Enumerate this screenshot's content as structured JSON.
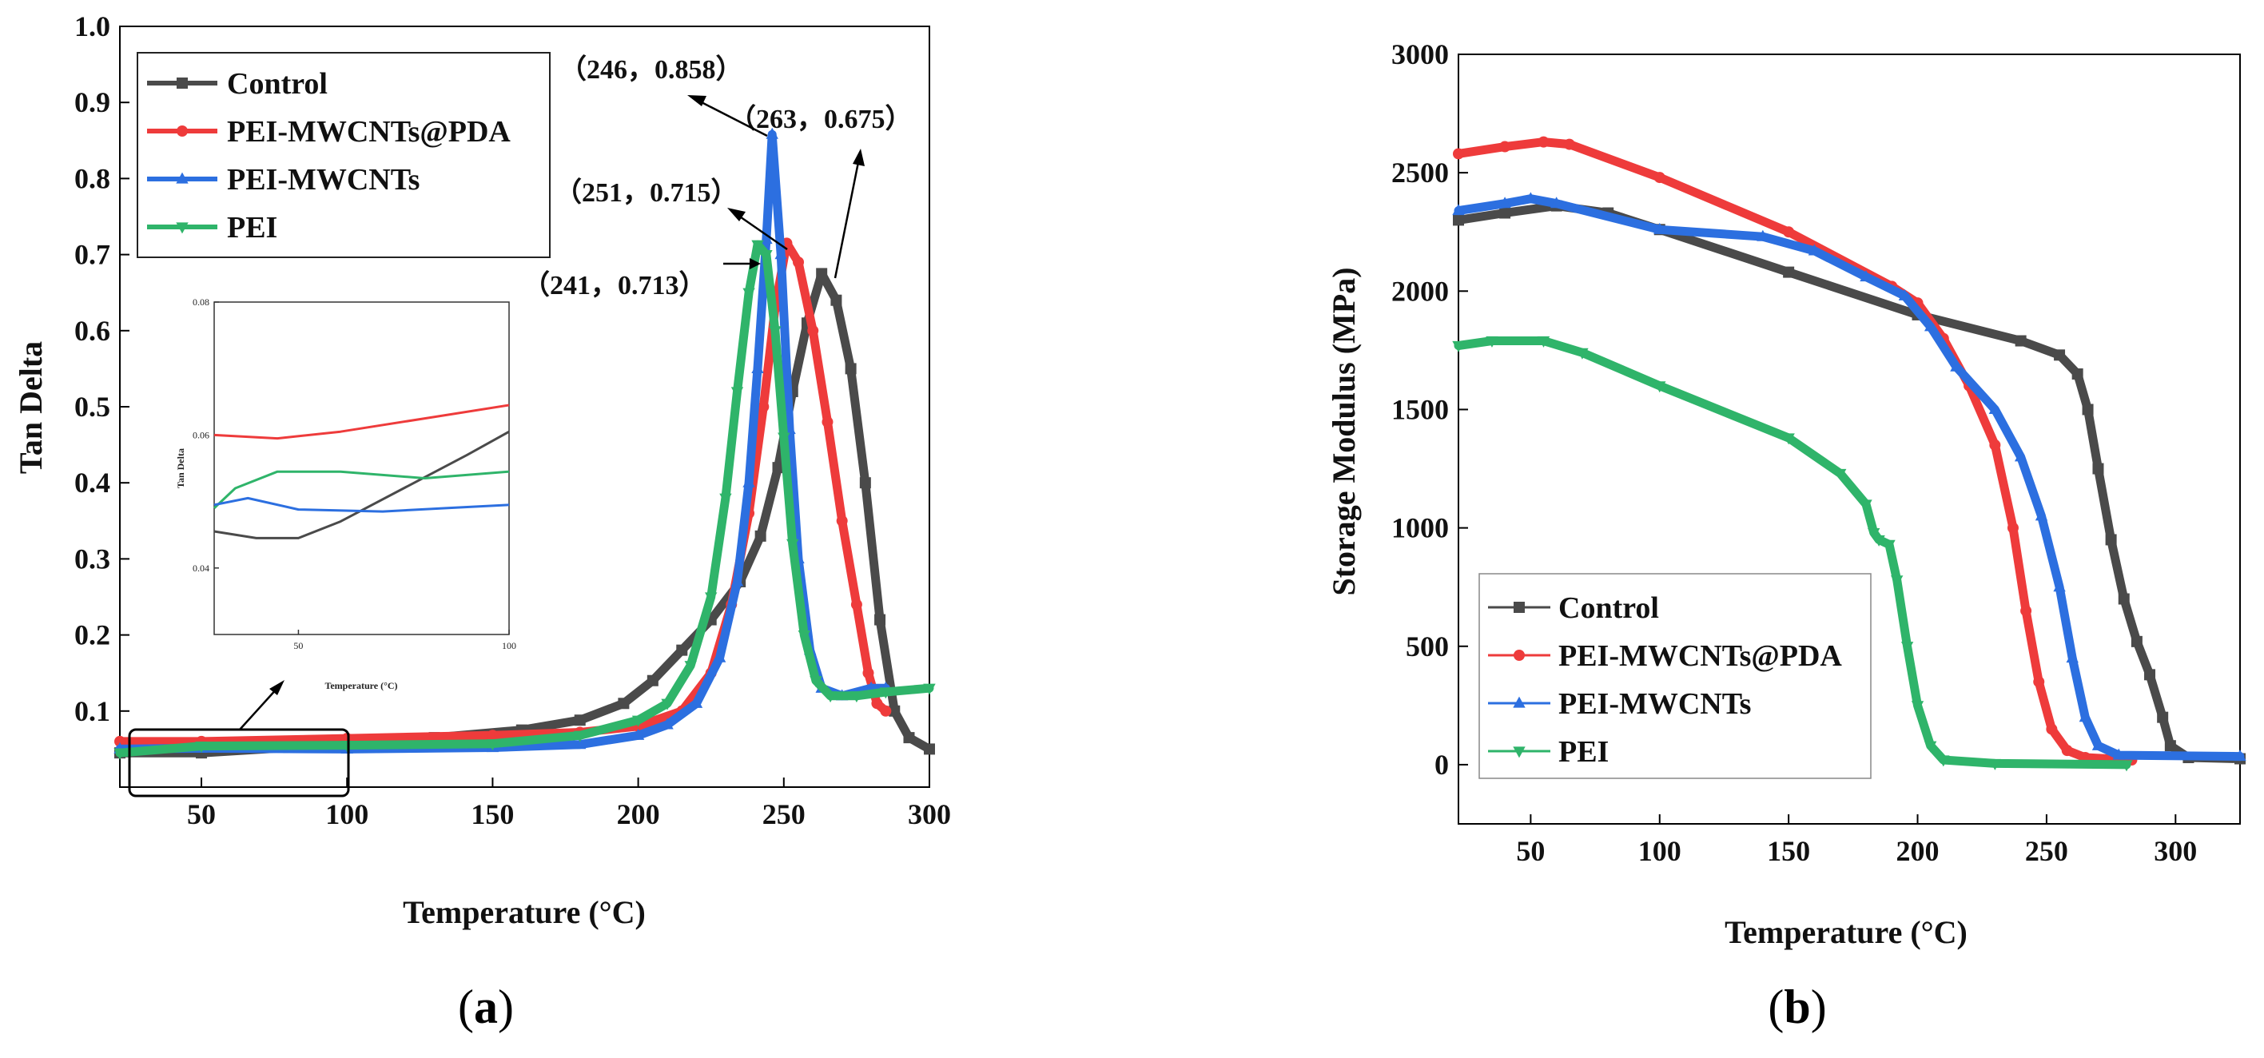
{
  "chart_data": [
    {
      "id": "a",
      "type": "line",
      "caption_letter": "a",
      "xlabel": "Temperature (°C)",
      "ylabel": "Tan Delta",
      "xlim": [
        22,
        300
      ],
      "ylim": [
        0.0,
        1.0
      ],
      "xticks": [
        50,
        100,
        150,
        200,
        250,
        300
      ],
      "yticks": [
        0.1,
        0.2,
        0.3,
        0.4,
        0.5,
        0.6,
        0.7,
        0.8,
        0.9,
        1.0
      ],
      "legend": {
        "position": "top-left"
      },
      "series": [
        {
          "name": "Control",
          "color": "#4a4a4a",
          "marker": "square",
          "points": [
            [
              22,
              0.045
            ],
            [
              50,
              0.045
            ],
            [
              80,
              0.052
            ],
            [
              100,
              0.058
            ],
            [
              130,
              0.065
            ],
            [
              160,
              0.075
            ],
            [
              180,
              0.088
            ],
            [
              195,
              0.11
            ],
            [
              205,
              0.14
            ],
            [
              215,
              0.18
            ],
            [
              225,
              0.22
            ],
            [
              235,
              0.27
            ],
            [
              242,
              0.33
            ],
            [
              248,
              0.42
            ],
            [
              253,
              0.52
            ],
            [
              258,
              0.61
            ],
            [
              263,
              0.675
            ],
            [
              268,
              0.64
            ],
            [
              273,
              0.55
            ],
            [
              278,
              0.4
            ],
            [
              283,
              0.22
            ],
            [
              288,
              0.1
            ],
            [
              293,
              0.065
            ],
            [
              300,
              0.05
            ]
          ]
        },
        {
          "name": "PEI-MWCNTs@PDA",
          "color": "#ee3b3b",
          "marker": "circle",
          "points": [
            [
              22,
              0.06
            ],
            [
              50,
              0.06
            ],
            [
              100,
              0.064
            ],
            [
              150,
              0.068
            ],
            [
              180,
              0.072
            ],
            [
              200,
              0.08
            ],
            [
              215,
              0.1
            ],
            [
              225,
              0.15
            ],
            [
              232,
              0.24
            ],
            [
              238,
              0.36
            ],
            [
              243,
              0.5
            ],
            [
              247,
              0.63
            ],
            [
              251,
              0.715
            ],
            [
              255,
              0.69
            ],
            [
              260,
              0.6
            ],
            [
              265,
              0.48
            ],
            [
              270,
              0.35
            ],
            [
              275,
              0.24
            ],
            [
              279,
              0.15
            ],
            [
              282,
              0.11
            ],
            [
              285,
              0.1
            ]
          ]
        },
        {
          "name": "PEI-MWCNTs",
          "color": "#2c6fe0",
          "marker": "triangle-up",
          "points": [
            [
              22,
              0.05
            ],
            [
              50,
              0.051
            ],
            [
              100,
              0.05
            ],
            [
              150,
              0.052
            ],
            [
              180,
              0.056
            ],
            [
              200,
              0.068
            ],
            [
              210,
              0.082
            ],
            [
              220,
              0.11
            ],
            [
              228,
              0.17
            ],
            [
              234,
              0.27
            ],
            [
              238,
              0.4
            ],
            [
              241,
              0.55
            ],
            [
              244,
              0.72
            ],
            [
              246,
              0.858
            ],
            [
              249,
              0.7
            ],
            [
              252,
              0.47
            ],
            [
              255,
              0.3
            ],
            [
              259,
              0.18
            ],
            [
              263,
              0.13
            ],
            [
              270,
              0.12
            ],
            [
              280,
              0.13
            ],
            [
              285,
              0.13
            ]
          ]
        },
        {
          "name": "PEI",
          "color": "#2fb46a",
          "marker": "triangle-down",
          "points": [
            [
              22,
              0.045
            ],
            [
              50,
              0.054
            ],
            [
              100,
              0.055
            ],
            [
              150,
              0.057
            ],
            [
              180,
              0.068
            ],
            [
              200,
              0.088
            ],
            [
              210,
              0.11
            ],
            [
              218,
              0.16
            ],
            [
              225,
              0.25
            ],
            [
              230,
              0.38
            ],
            [
              234,
              0.52
            ],
            [
              238,
              0.65
            ],
            [
              241,
              0.713
            ],
            [
              244,
              0.7
            ],
            [
              247,
              0.6
            ],
            [
              250,
              0.46
            ],
            [
              253,
              0.32
            ],
            [
              257,
              0.2
            ],
            [
              261,
              0.14
            ],
            [
              266,
              0.12
            ],
            [
              275,
              0.12
            ],
            [
              285,
              0.125
            ],
            [
              300,
              0.13
            ]
          ]
        }
      ],
      "annotations": [
        {
          "text": "（246，0.858）"
        },
        {
          "text": "（263，0.675）"
        },
        {
          "text": "（251，0.715）"
        },
        {
          "text": "（241，0.713）"
        }
      ],
      "inset": {
        "xlabel": "Temperature (°C)",
        "ylabel": "Tan Delta",
        "xlim": [
          30,
          100
        ],
        "ylim": [
          0.03,
          0.08
        ],
        "xticks": [
          50,
          100
        ],
        "yticks": [
          0.04,
          0.06,
          0.08
        ],
        "series": [
          {
            "name": "PEI-MWCNTs@PDA",
            "color": "#ee3b3b",
            "points": [
              [
                30,
                0.06
              ],
              [
                45,
                0.0595
              ],
              [
                60,
                0.0605
              ],
              [
                80,
                0.0625
              ],
              [
                100,
                0.0645
              ]
            ]
          },
          {
            "name": "Control",
            "color": "#4a4a4a",
            "points": [
              [
                30,
                0.0455
              ],
              [
                40,
                0.0445
              ],
              [
                50,
                0.0445
              ],
              [
                60,
                0.047
              ],
              [
                75,
                0.052
              ],
              [
                90,
                0.057
              ],
              [
                100,
                0.0605
              ]
            ]
          },
          {
            "name": "PEI",
            "color": "#2fb46a",
            "points": [
              [
                30,
                0.049
              ],
              [
                35,
                0.052
              ],
              [
                45,
                0.0545
              ],
              [
                60,
                0.0545
              ],
              [
                80,
                0.0535
              ],
              [
                100,
                0.0545
              ]
            ]
          },
          {
            "name": "PEI-MWCNTs",
            "color": "#2c6fe0",
            "points": [
              [
                30,
                0.0495
              ],
              [
                38,
                0.0505
              ],
              [
                50,
                0.0488
              ],
              [
                70,
                0.0485
              ],
              [
                85,
                0.049
              ],
              [
                100,
                0.0495
              ]
            ]
          }
        ]
      }
    },
    {
      "id": "b",
      "type": "line",
      "caption_letter": "b",
      "xlabel": "Temperature (°C)",
      "ylabel": "Storage Modulus (MPa)",
      "xlim": [
        22,
        325
      ],
      "ylim": [
        -250,
        3000
      ],
      "xticks": [
        50,
        100,
        150,
        200,
        250,
        300
      ],
      "yticks": [
        0,
        500,
        1000,
        1500,
        2000,
        2500,
        3000
      ],
      "legend": {
        "position": "bottom-left"
      },
      "series": [
        {
          "name": "Control",
          "color": "#4a4a4a",
          "marker": "square",
          "points": [
            [
              22,
              2300
            ],
            [
              40,
              2330
            ],
            [
              60,
              2360
            ],
            [
              80,
              2330
            ],
            [
              100,
              2260
            ],
            [
              150,
              2080
            ],
            [
              200,
              1900
            ],
            [
              240,
              1790
            ],
            [
              255,
              1730
            ],
            [
              262,
              1650
            ],
            [
              266,
              1500
            ],
            [
              270,
              1250
            ],
            [
              275,
              950
            ],
            [
              280,
              700
            ],
            [
              285,
              520
            ],
            [
              290,
              380
            ],
            [
              295,
              200
            ],
            [
              298,
              80
            ],
            [
              305,
              30
            ],
            [
              325,
              25
            ]
          ]
        },
        {
          "name": "PEI-MWCNTs@PDA",
          "color": "#ee3b3b",
          "marker": "circle",
          "points": [
            [
              22,
              2580
            ],
            [
              40,
              2610
            ],
            [
              55,
              2630
            ],
            [
              65,
              2620
            ],
            [
              100,
              2480
            ],
            [
              150,
              2250
            ],
            [
              190,
              2020
            ],
            [
              200,
              1950
            ],
            [
              210,
              1800
            ],
            [
              220,
              1600
            ],
            [
              230,
              1350
            ],
            [
              237,
              1000
            ],
            [
              242,
              650
            ],
            [
              247,
              350
            ],
            [
              252,
              150
            ],
            [
              258,
              60
            ],
            [
              265,
              30
            ],
            [
              283,
              20
            ]
          ]
        },
        {
          "name": "PEI-MWCNTs",
          "color": "#2c6fe0",
          "marker": "triangle-up",
          "points": [
            [
              22,
              2340
            ],
            [
              40,
              2370
            ],
            [
              50,
              2390
            ],
            [
              60,
              2370
            ],
            [
              100,
              2260
            ],
            [
              140,
              2230
            ],
            [
              160,
              2170
            ],
            [
              180,
              2060
            ],
            [
              195,
              1980
            ],
            [
              205,
              1850
            ],
            [
              215,
              1680
            ],
            [
              230,
              1500
            ],
            [
              240,
              1300
            ],
            [
              248,
              1050
            ],
            [
              255,
              750
            ],
            [
              260,
              450
            ],
            [
              265,
              200
            ],
            [
              270,
              80
            ],
            [
              278,
              40
            ],
            [
              325,
              35
            ]
          ]
        },
        {
          "name": "PEI",
          "color": "#2fb46a",
          "marker": "triangle-down",
          "points": [
            [
              22,
              1770
            ],
            [
              35,
              1790
            ],
            [
              55,
              1790
            ],
            [
              70,
              1740
            ],
            [
              100,
              1600
            ],
            [
              150,
              1380
            ],
            [
              170,
              1230
            ],
            [
              180,
              1100
            ],
            [
              183,
              980
            ],
            [
              185,
              950
            ],
            [
              189,
              930
            ],
            [
              192,
              780
            ],
            [
              196,
              500
            ],
            [
              200,
              250
            ],
            [
              205,
              80
            ],
            [
              210,
              20
            ],
            [
              230,
              5
            ],
            [
              281,
              0
            ]
          ]
        }
      ],
      "legend_entries": [
        "Control",
        "PEI-MWCNTs@PDA",
        "PEI-MWCNTs",
        "PEI"
      ]
    }
  ]
}
